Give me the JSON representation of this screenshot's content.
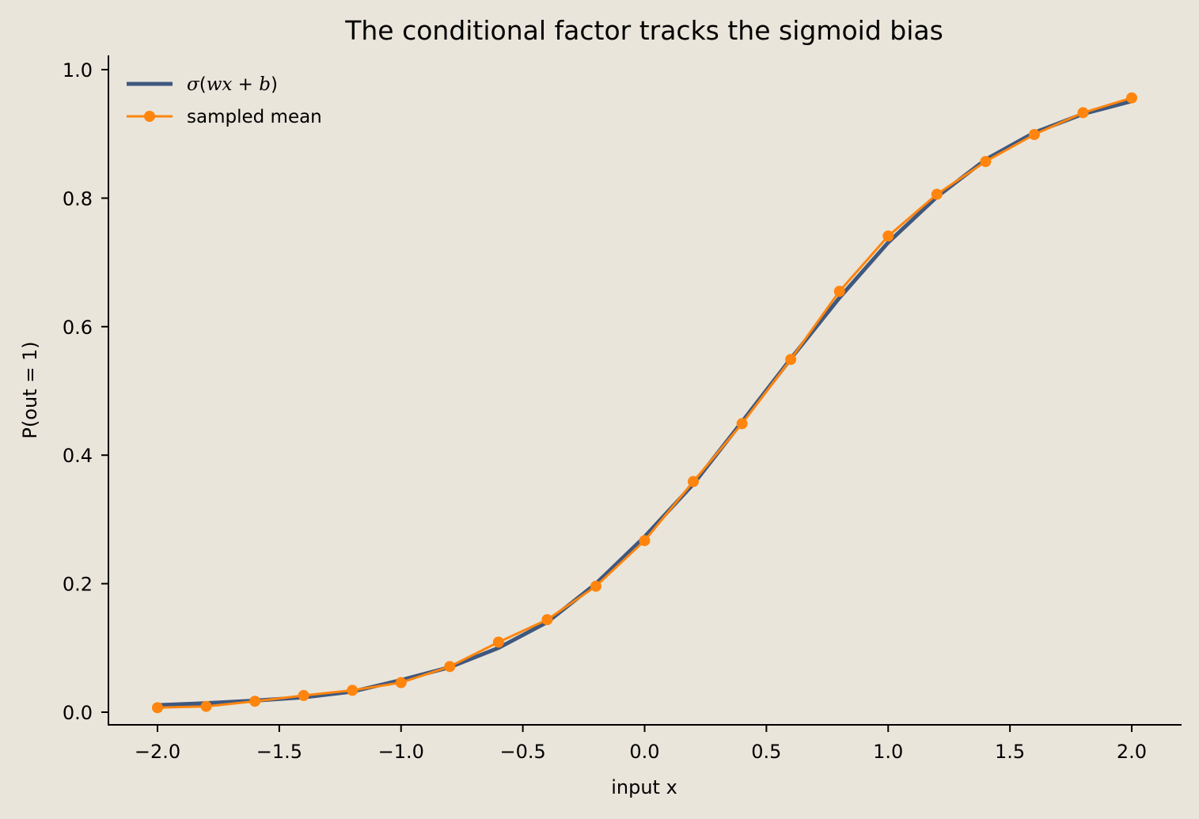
{
  "chart_data": {
    "type": "line",
    "title": "The conditional factor tracks the sigmoid bias",
    "xlabel": "input x",
    "ylabel": "P(out = 1)",
    "xlim": [
      -2.2,
      2.2
    ],
    "ylim": [
      -0.02,
      1.02
    ],
    "xticks": [
      -2.0,
      -1.5,
      -1.0,
      -0.5,
      0.0,
      0.5,
      1.0,
      1.5,
      2.0
    ],
    "xtick_labels": [
      "−2.0",
      "−1.5",
      "−1.0",
      "−0.5",
      "0.0",
      "0.5",
      "1.0",
      "1.5",
      "2.0"
    ],
    "yticks": [
      0.0,
      0.2,
      0.4,
      0.6,
      0.8,
      1.0
    ],
    "ytick_labels": [
      "0.0",
      "0.2",
      "0.4",
      "0.6",
      "0.8",
      "1.0"
    ],
    "grid": false,
    "legend_position": "top-left",
    "x": [
      -2.0,
      -1.8,
      -1.6,
      -1.4,
      -1.2,
      -1.0,
      -0.8,
      -0.6,
      -0.4,
      -0.2,
      0.0,
      0.2,
      0.4,
      0.6,
      0.8,
      1.0,
      1.2,
      1.4,
      1.6,
      1.8,
      2.0
    ],
    "series": [
      {
        "name": "σ(wx + b)",
        "style": "line",
        "color": "#3F587F",
        "values": [
          0.011,
          0.014,
          0.018,
          0.023,
          0.032,
          0.05,
          0.07,
          0.1,
          0.14,
          0.2,
          0.273,
          0.355,
          0.452,
          0.55,
          0.645,
          0.731,
          0.802,
          0.86,
          0.902,
          0.931,
          0.951
        ]
      },
      {
        "name": "sampled mean",
        "style": "line-marker",
        "color": "#FF850E",
        "values": [
          0.007,
          0.009,
          0.017,
          0.026,
          0.034,
          0.046,
          0.071,
          0.109,
          0.144,
          0.196,
          0.267,
          0.359,
          0.449,
          0.549,
          0.655,
          0.741,
          0.806,
          0.857,
          0.899,
          0.933,
          0.956
        ]
      }
    ]
  }
}
